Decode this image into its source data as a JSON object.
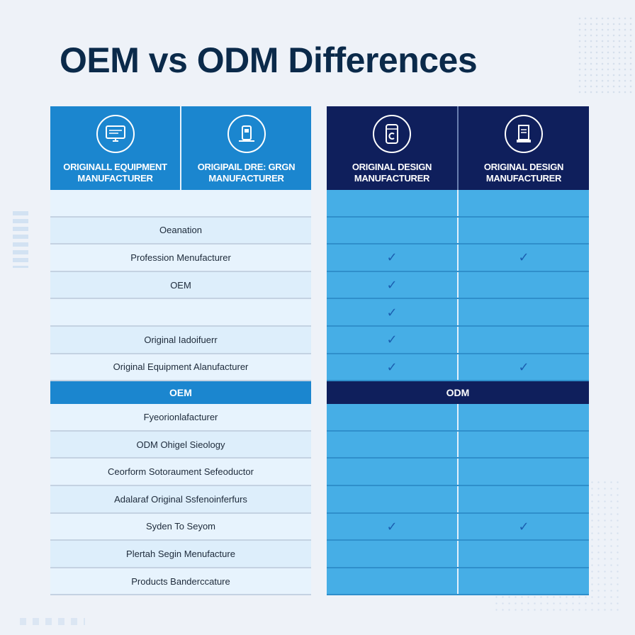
{
  "title": "OEM vs ODM Differences",
  "left": {
    "headers": [
      {
        "label": "ORIGINALL EQUIPMENT MANUFACTURER",
        "icon": "monitor-icon"
      },
      {
        "label": "ORIGIPAIL DRE: GRGN MANUFACTURER",
        "icon": "device-icon"
      }
    ],
    "rows_top": [
      "",
      "Oeanation",
      "Profession Menufacturer",
      "OEM",
      "",
      "Original Iadoifuerr",
      "Original Equipment Alanufacturer"
    ],
    "band": "OEM",
    "rows_bottom": [
      "Fyeorionlafacturer",
      "ODM Ohigel Sieology",
      "Ceorform Sotoraument Sefeoductor",
      "Adalaraf Original Ssfenoinferfurs",
      "Syden To Seyom",
      "Plertah Segin Menufacture",
      "Products Banderccature"
    ]
  },
  "right": {
    "headers": [
      {
        "label": "ORIGINAL DESIGN MANUFACTURER",
        "icon": "cup-icon"
      },
      {
        "label": "ORIGINAL DESIGN MANUFACTURER",
        "icon": "document-icon"
      }
    ],
    "check_symbol": "✓",
    "rows_top": [
      [
        false,
        false
      ],
      [
        false,
        false
      ],
      [
        true,
        true
      ],
      [
        true,
        false
      ],
      [
        true,
        false
      ],
      [
        true,
        false
      ],
      [
        true,
        true
      ]
    ],
    "band": "ODM",
    "rows_bottom": [
      [
        false,
        false
      ],
      [
        false,
        false
      ],
      [
        false,
        false
      ],
      [
        false,
        false
      ],
      [
        true,
        true
      ],
      [
        false,
        false
      ],
      [
        false,
        false
      ]
    ]
  }
}
